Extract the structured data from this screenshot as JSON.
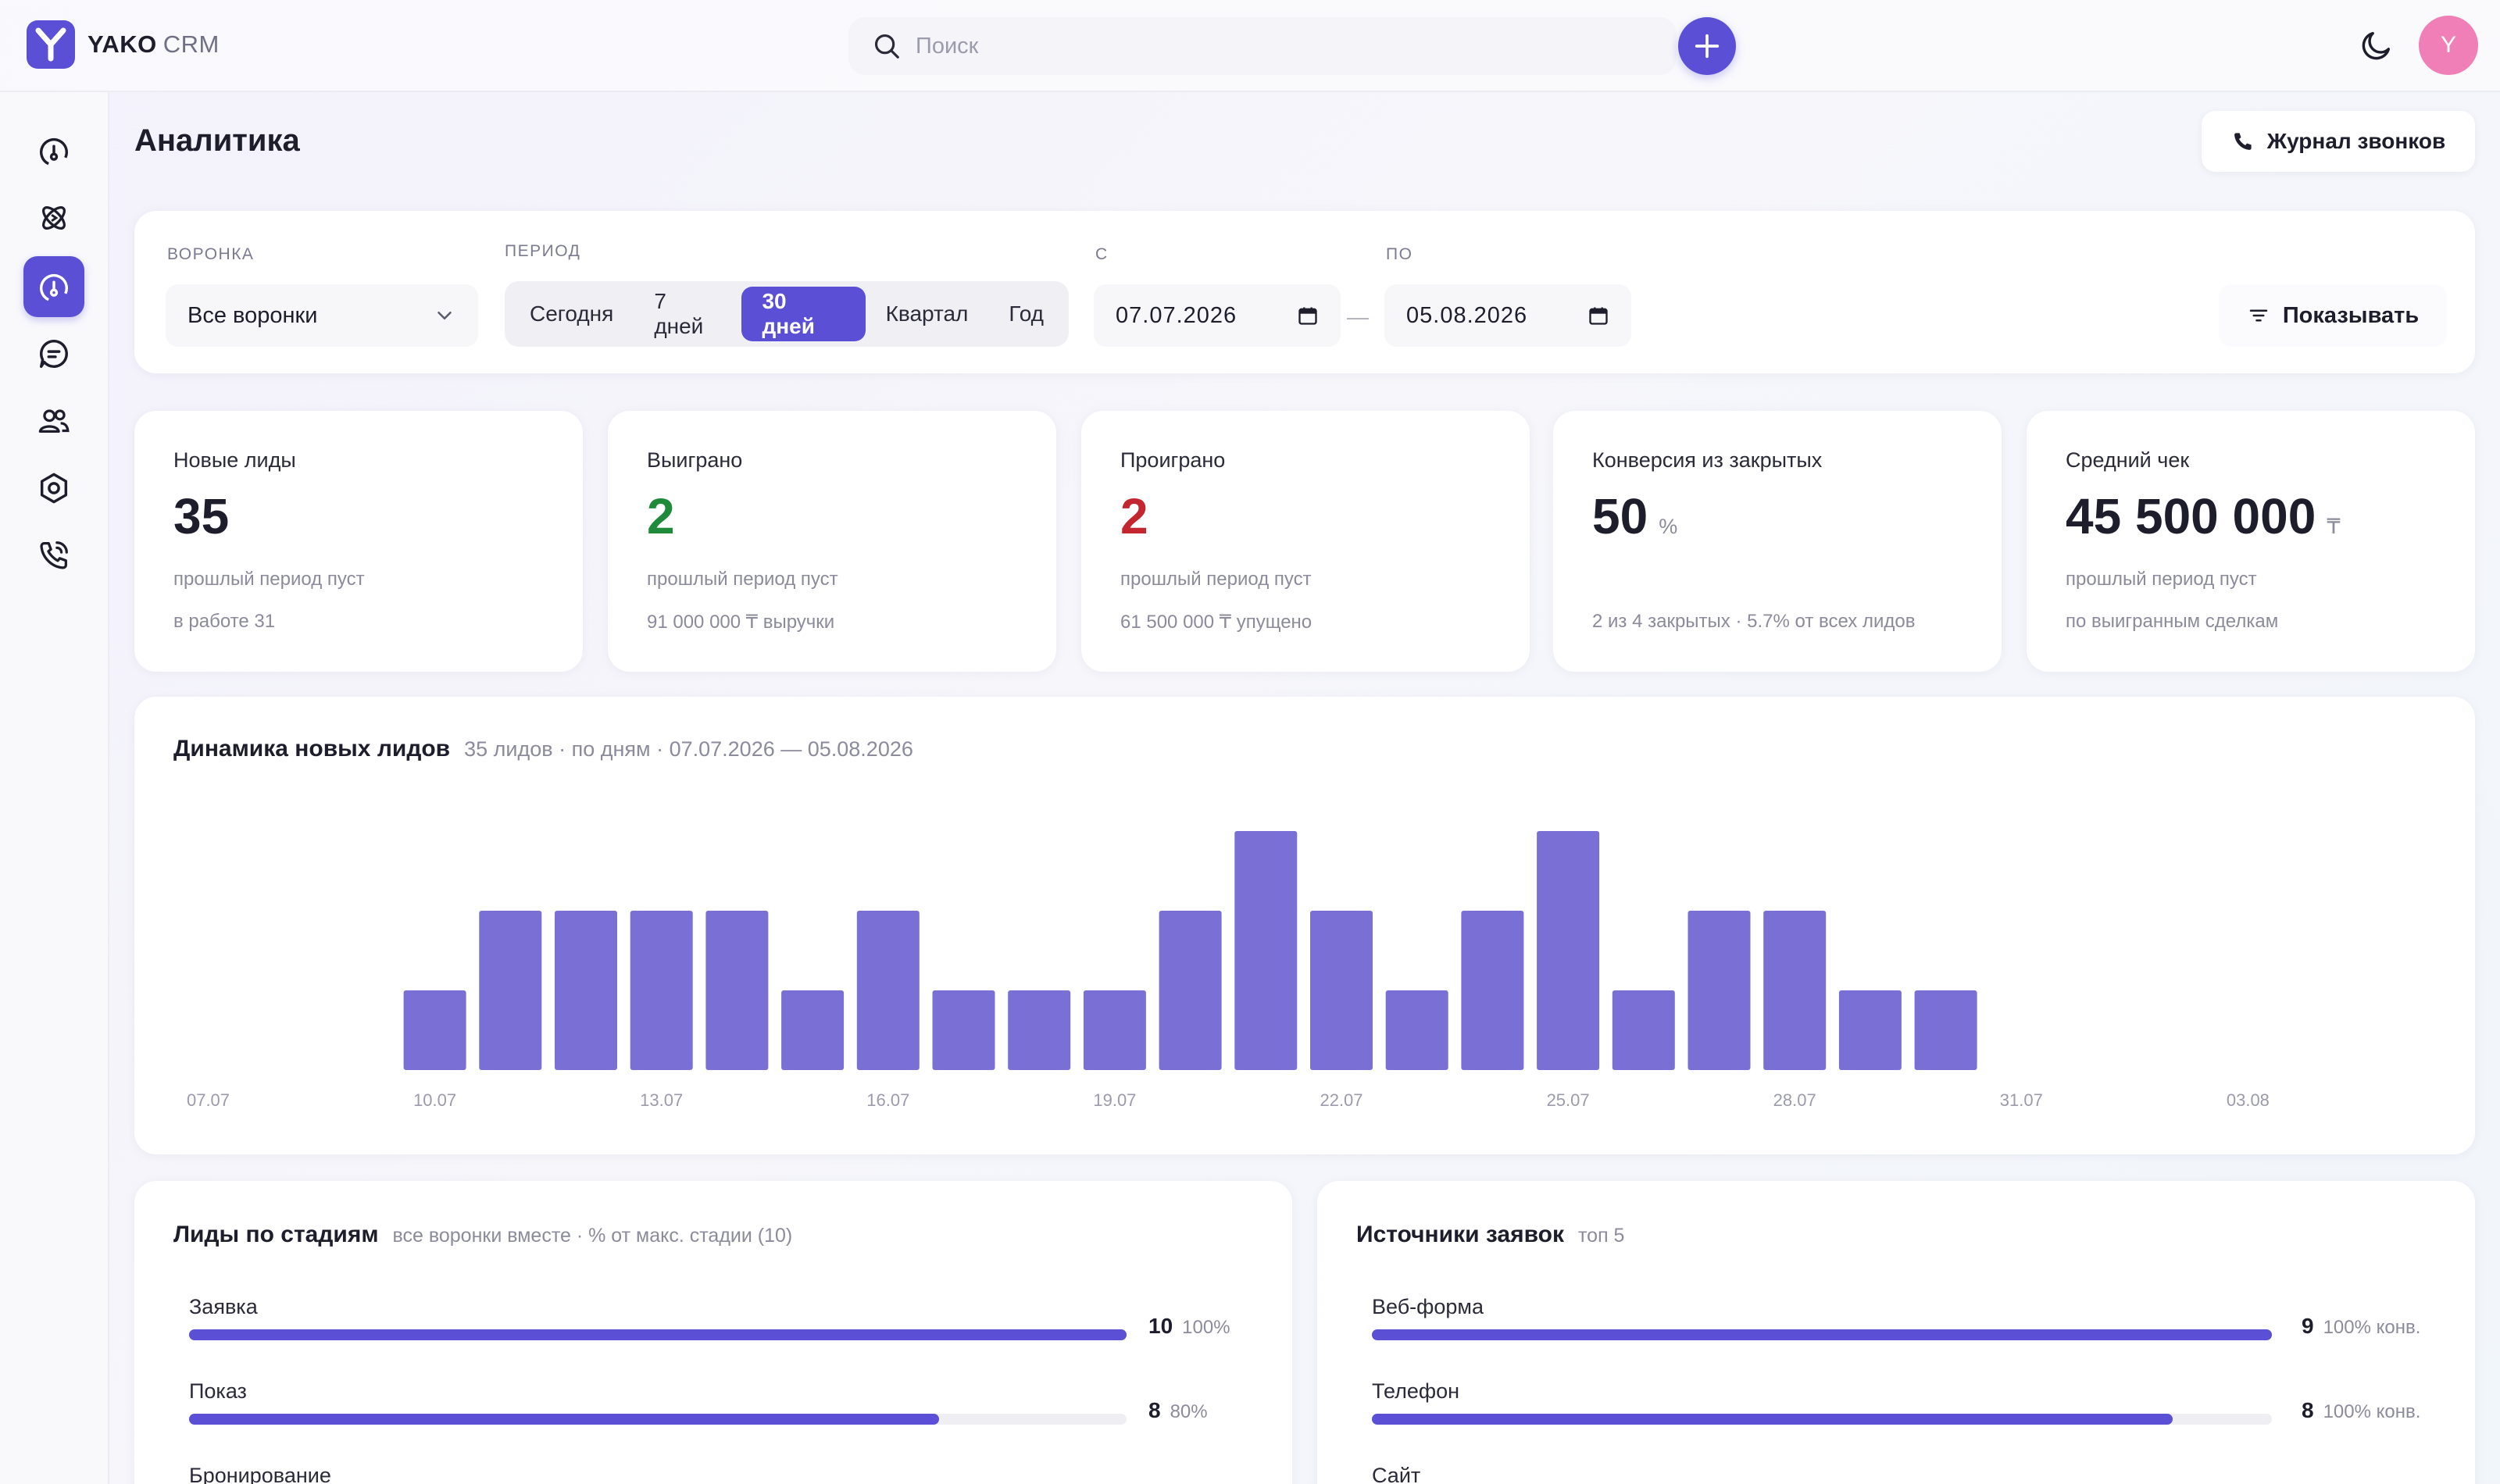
{
  "app": {
    "logo_letter": "Y",
    "brand_bold": "YAKO",
    "brand_light": "CRM",
    "accent": "#5b4fd6"
  },
  "header": {
    "search_placeholder": "Поиск",
    "avatar_letter": "Y",
    "avatar_color": "#ef7fb6"
  },
  "sidebar": {
    "items": [
      {
        "icon": "dashboard-gauge-icon",
        "active": false
      },
      {
        "icon": "deals-atom-icon",
        "active": false
      },
      {
        "icon": "analytics-gauge-icon",
        "active": true
      },
      {
        "icon": "chat-bubble-icon",
        "active": false
      },
      {
        "icon": "contacts-people-icon",
        "active": false
      },
      {
        "icon": "settings-hexagon-icon",
        "active": false
      },
      {
        "icon": "phone-calls-icon",
        "active": false
      }
    ]
  },
  "page": {
    "title": "Аналитика",
    "call_log_label": "Журнал звонков"
  },
  "filters": {
    "funnel_label": "ВОРОНКА",
    "funnel_value": "Все воронки",
    "period_label": "ПЕРИОД",
    "periods": [
      "Сегодня",
      "7 дней",
      "30 дней",
      "Квартал",
      "Год"
    ],
    "active_period": "30 дней",
    "from_label": "С",
    "from_value": "07.07.2026",
    "to_label": "ПО",
    "to_value": "05.08.2026",
    "dash": "—",
    "show_label": "Показывать"
  },
  "kpis": [
    {
      "label": "Новые лиды",
      "value": "35",
      "unit": "",
      "sub1": "прошлый период пуст",
      "sub2": "в работе 31",
      "tone": "default"
    },
    {
      "label": "Выиграно",
      "value": "2",
      "unit": "",
      "sub1": "прошлый период пуст",
      "sub2": "91 000 000 ₸ выручки",
      "tone": "green"
    },
    {
      "label": "Проиграно",
      "value": "2",
      "unit": "",
      "sub1": "прошлый период пуст",
      "sub2": "61 500 000 ₸ упущено",
      "tone": "red"
    },
    {
      "label": "Конверсия из закрытых",
      "value": "50",
      "unit": "%",
      "sub1": "",
      "sub2": "2 из 4 закрытых · 5.7% от всех лидов",
      "tone": "default"
    },
    {
      "label": "Средний чек",
      "value": "45 500 000",
      "unit": "₸",
      "sub1": "прошлый период пуст",
      "sub2": "по выигранным сделкам",
      "tone": "default"
    }
  ],
  "chart": {
    "title": "Динамика новых лидов",
    "subtitle": "35 лидов · по дням · 07.07.2026 — 05.08.2026"
  },
  "chart_data": {
    "type": "bar",
    "categories": [
      "07.07",
      "08.07",
      "09.07",
      "10.07",
      "11.07",
      "12.07",
      "13.07",
      "14.07",
      "15.07",
      "16.07",
      "17.07",
      "18.07",
      "19.07",
      "20.07",
      "21.07",
      "22.07",
      "23.07",
      "24.07",
      "25.07",
      "26.07",
      "27.07",
      "28.07",
      "29.07",
      "30.07",
      "31.07",
      "01.08",
      "02.08",
      "03.08",
      "04.08",
      "05.08"
    ],
    "values": [
      0,
      0,
      0,
      1,
      2,
      2,
      2,
      2,
      1,
      2,
      1,
      1,
      1,
      2,
      3,
      2,
      1,
      2,
      3,
      1,
      2,
      2,
      1,
      1,
      0,
      0,
      0,
      0,
      0,
      0
    ],
    "tick_labels": [
      "07.07",
      "10.07",
      "13.07",
      "16.07",
      "19.07",
      "22.07",
      "25.07",
      "28.07",
      "31.07",
      "03.08"
    ],
    "ylim": [
      0,
      3
    ],
    "grid": false,
    "color": "#7a6fd4"
  },
  "stages": {
    "title": "Лиды по стадиям",
    "subtitle": "все воронки вместе · % от макс. стадии (10)",
    "rows": [
      {
        "label": "Заявка",
        "value": "10",
        "pct": "100%",
        "fraction": 1.0
      },
      {
        "label": "Показ",
        "value": "8",
        "pct": "80%",
        "fraction": 0.8
      },
      {
        "label": "Бронирование",
        "value": "",
        "pct": "",
        "fraction": 0
      }
    ]
  },
  "sources": {
    "title": "Источники заявок",
    "subtitle": "топ 5",
    "rows": [
      {
        "label": "Веб-форма",
        "value": "9",
        "pct": "100% конв.",
        "fraction": 1.0
      },
      {
        "label": "Телефон",
        "value": "8",
        "pct": "100% конв.",
        "fraction": 0.89
      },
      {
        "label": "Сайт",
        "value": "",
        "pct": "",
        "fraction": 0
      }
    ]
  }
}
